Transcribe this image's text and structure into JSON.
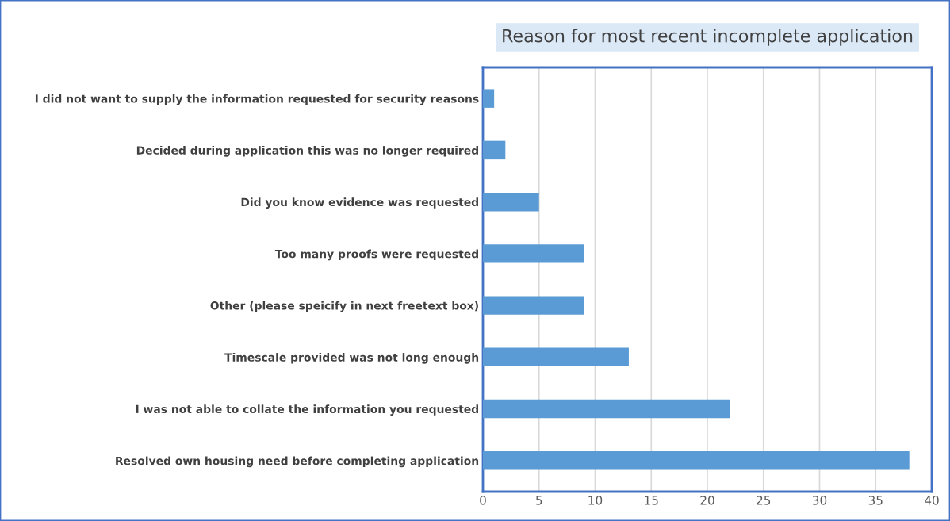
{
  "chart_data": {
    "type": "bar",
    "orientation": "horizontal",
    "title": "Reason for most recent incomplete application",
    "categories": [
      "I did not want to supply the information requested for security reasons",
      "Decided during application this was no longer required",
      "Did you know evidence was requested",
      "Too many proofs were requested",
      "Other (please speicify in next freetext box)",
      "Timescale provided was not long enough",
      "I was not able to collate the information you requested",
      "Resolved own housing need before completing application"
    ],
    "values": [
      1,
      2,
      5,
      9,
      9,
      13,
      22,
      38
    ],
    "color": "#5b9bd5",
    "xlim": [
      0,
      40
    ],
    "xticks": [
      0,
      5,
      10,
      15,
      20,
      25,
      30,
      35,
      40
    ],
    "grid": "x",
    "legend": false
  }
}
